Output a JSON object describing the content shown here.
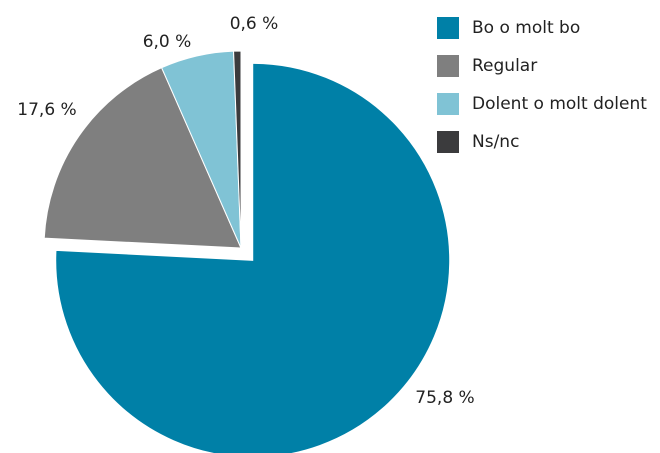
{
  "chart_data": {
    "type": "pie",
    "categories": [
      "Bo o molt bo",
      "Regular",
      "Dolent o molt dolent",
      "Ns/nc"
    ],
    "values": [
      75.8,
      17.6,
      6.0,
      0.6
    ],
    "value_labels": [
      "75,8 %",
      "17,6 %",
      "6,0 %",
      "0,6 %"
    ],
    "colors": [
      "#0080a7",
      "#7f7f7f",
      "#80c3d5",
      "#3b3b3d"
    ],
    "exploded": [
      0
    ],
    "legend": "top-right"
  }
}
